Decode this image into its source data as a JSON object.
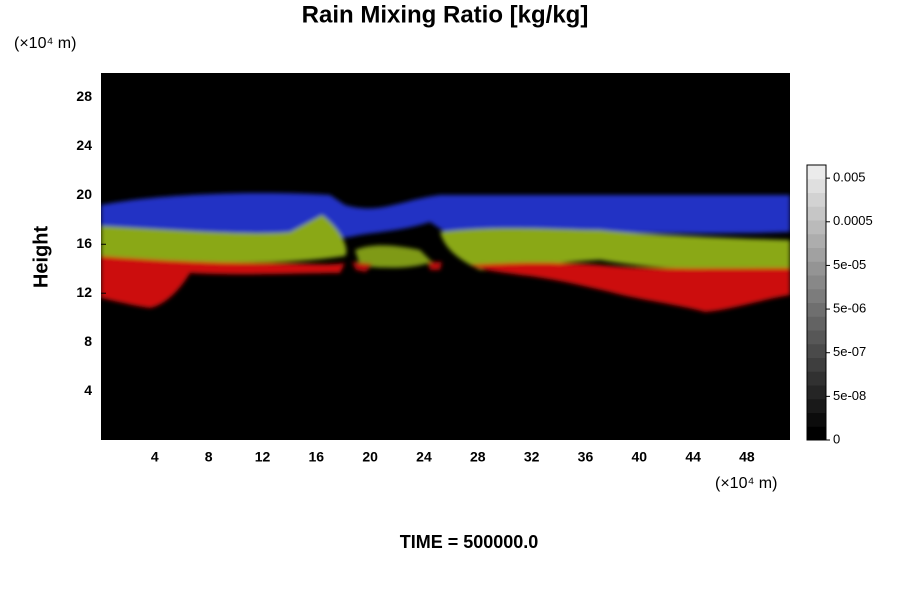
{
  "chart_data": {
    "type": "contour",
    "title": "Rain Mixing Ratio [kg/kg]",
    "ylabel": "Height",
    "yunit": "(×10⁴ m)",
    "xunit": "(×10⁴ m)",
    "annotation": "TIME = 500000.0",
    "xlim": [
      0,
      51.2
    ],
    "ylim": [
      0,
      30
    ],
    "xticks": [
      4,
      8,
      12,
      16,
      20,
      24,
      28,
      32,
      36,
      40,
      44,
      48
    ],
    "yticks": [
      4,
      8,
      12,
      16,
      20,
      24,
      28
    ],
    "colorbar_scale": "log",
    "colorbar_lim": [
      5e-09,
      0.01
    ],
    "colorbar_ticks": [
      {
        "value": 0,
        "label": "0"
      },
      {
        "value": 5e-08,
        "label": "5e-08"
      },
      {
        "value": 5e-07,
        "label": "5e-07"
      },
      {
        "value": 5e-06,
        "label": "5e-06"
      },
      {
        "value": 5e-05,
        "label": "5e-05"
      },
      0.0005,
      0.005
    ]
  }
}
